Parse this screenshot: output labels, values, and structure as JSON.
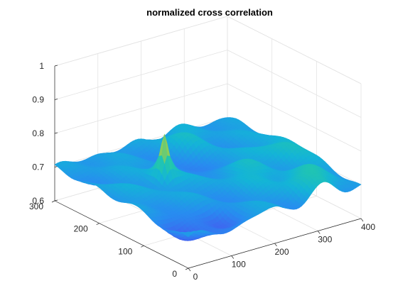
{
  "chart_data": {
    "type": "surface",
    "title": "normalized cross correlation",
    "xlabel": "",
    "ylabel": "",
    "zlabel": "",
    "x_axis": {
      "lim": [
        0,
        400
      ],
      "ticks": [
        0,
        100,
        200,
        300,
        400
      ]
    },
    "y_axis": {
      "lim": [
        0,
        300
      ],
      "ticks": [
        0,
        100,
        200,
        300
      ]
    },
    "z_axis": {
      "lim": [
        0.6,
        1.0
      ],
      "ticks": [
        0.6,
        0.7,
        0.8,
        0.9,
        1.0
      ],
      "tick_labels": [
        "0.6",
        "0.7",
        "0.8",
        "0.9",
        "1"
      ]
    },
    "grid": true,
    "colormap": "parula",
    "color_limits": [
      0.6,
      0.87
    ],
    "surface": {
      "x_range": [
        0,
        400
      ],
      "y_range": [
        0,
        300
      ],
      "baseline": 0.7,
      "peak": {
        "x": 120,
        "y": 170,
        "value": 0.87
      },
      "features": [
        {
          "x": 40,
          "y": 40,
          "amplitude": -0.05
        },
        {
          "x": 210,
          "y": 200,
          "amplitude": -0.03
        },
        {
          "x": 320,
          "y": 40,
          "amplitude": 0.06
        },
        {
          "x": 380,
          "y": 150,
          "amplitude": 0.05
        },
        {
          "x": 260,
          "y": 120,
          "amplitude": 0.035
        },
        {
          "x": 110,
          "y": 40,
          "amplitude": -0.04
        },
        {
          "x": 270,
          "y": 260,
          "amplitude": 0.03
        }
      ]
    }
  }
}
